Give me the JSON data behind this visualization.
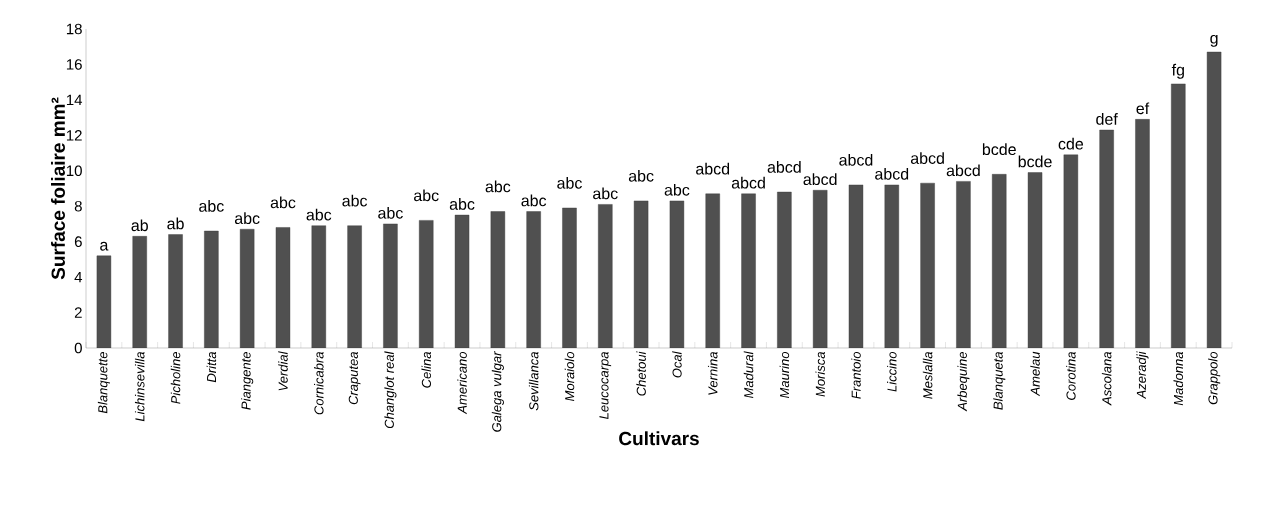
{
  "chart_data": {
    "type": "bar",
    "xlabel": "Cultivars",
    "ylabel": "Surface foliaire mm²",
    "categories": [
      "Blanquette",
      "Lichinsevilla",
      "Picholine",
      "Dritta",
      "Piangente",
      "Verdial",
      "Cornicabra",
      "Craputea",
      "Changlot real",
      "Celina",
      "Americano",
      "Galega vulgar",
      "Sevillanca",
      "Moraiolo",
      "Leucocarpa",
      "Chetoui",
      "Ocal",
      "Vernina",
      "Madural",
      "Maurino",
      "Morisca",
      "Frantoio",
      "Liccino",
      "Meslalla",
      "Arbequine",
      "Blanqueta",
      "Amelau",
      "Corotina",
      "Ascolana",
      "Azeradji",
      "Madonna",
      "Grappolo"
    ],
    "values": [
      5.2,
      6.3,
      6.4,
      6.6,
      6.7,
      6.8,
      6.9,
      6.9,
      7.0,
      7.2,
      7.5,
      7.7,
      7.7,
      7.9,
      8.1,
      8.3,
      8.3,
      8.7,
      8.7,
      8.8,
      8.9,
      9.2,
      9.2,
      9.3,
      9.4,
      9.8,
      9.9,
      10.9,
      12.3,
      12.9,
      14.9,
      16.7
    ],
    "value_labels": [
      "a",
      "ab",
      "ab",
      "abc",
      "abc",
      "abc",
      "abc",
      "abc",
      "abc",
      "abc",
      "abc",
      "abc",
      "abc",
      "abc",
      "abc",
      "abc",
      "abc",
      "abcd",
      "abcd",
      "abcd",
      "abcd",
      "abcd",
      "abcd",
      "abcd",
      "abcd",
      "bcde",
      "bcde",
      "cde",
      "def",
      "ef",
      "fg",
      "g"
    ],
    "color": "#505050",
    "ylim": [
      0,
      18
    ],
    "yticks": [
      0,
      2,
      4,
      6,
      8,
      10,
      12,
      14,
      16,
      18
    ]
  }
}
